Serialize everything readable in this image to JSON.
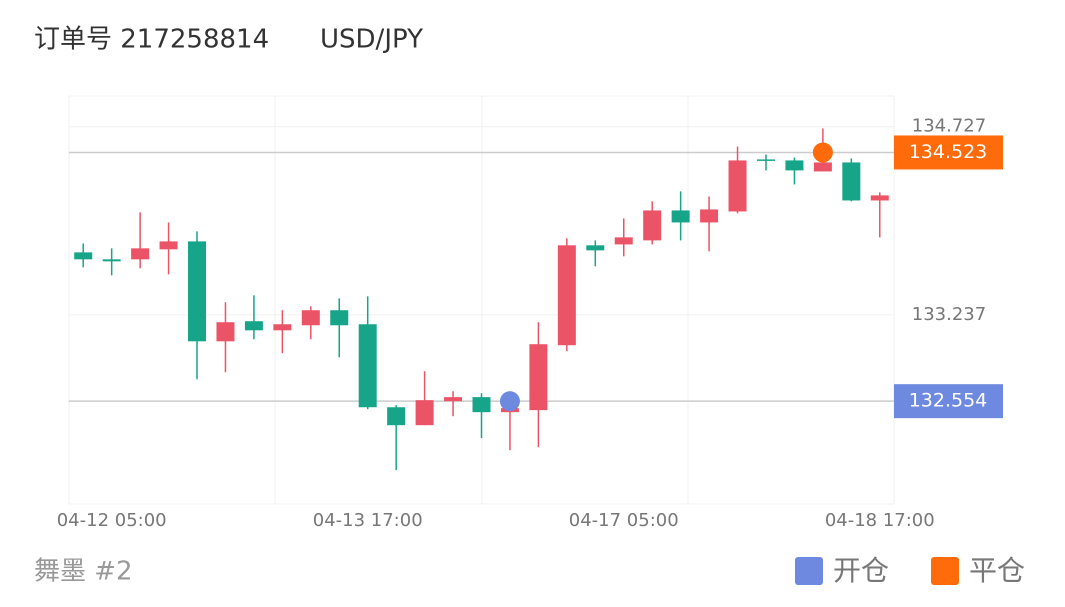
{
  "chart_data": {
    "type": "candlestick",
    "title": "订单号 217258814",
    "symbol": "USD/JPY",
    "footer": "舞墨 #2",
    "categories": [
      null,
      "04-12 05:00",
      null,
      null,
      null,
      null,
      null,
      null,
      null,
      null,
      "04-13 17:00",
      null,
      null,
      null,
      null,
      null,
      null,
      null,
      null,
      "04-17 05:00",
      null,
      null,
      null,
      null,
      null,
      null,
      null,
      null,
      "04-18 17:00"
    ],
    "open": [
      133.732,
      133.677,
      133.677,
      133.756,
      133.819,
      133.028,
      133.187,
      133.115,
      133.155,
      133.274,
      133.163,
      132.506,
      132.364,
      132.554,
      132.586,
      132.467,
      132.483,
      132.997,
      133.788,
      133.795,
      133.827,
      134.064,
      133.969,
      134.056,
      134.468,
      134.46,
      134.373,
      134.444,
      134.143
    ],
    "high": [
      133.803,
      133.764,
      134.049,
      133.969,
      133.898,
      133.337,
      133.392,
      133.274,
      133.305,
      133.368,
      133.384,
      132.522,
      132.791,
      132.633,
      132.617,
      132.554,
      133.179,
      133.843,
      133.827,
      134.001,
      134.136,
      134.215,
      134.175,
      134.57,
      134.507,
      134.483,
      134.713,
      134.476,
      134.207
    ],
    "low": [
      133.614,
      133.55,
      133.606,
      133.558,
      132.728,
      132.783,
      133.044,
      132.934,
      133.044,
      132.902,
      132.491,
      132.008,
      132.364,
      132.435,
      132.262,
      132.166,
      132.19,
      132.949,
      133.622,
      133.701,
      133.795,
      133.827,
      133.74,
      134.041,
      134.381,
      134.27,
      134.373,
      134.136,
      133.851
    ],
    "close": [
      133.677,
      133.661,
      133.764,
      133.819,
      133.028,
      133.179,
      133.115,
      133.163,
      133.274,
      133.155,
      132.506,
      132.364,
      132.562,
      132.586,
      132.467,
      132.499,
      133.005,
      133.788,
      133.748,
      133.851,
      134.064,
      133.969,
      134.072,
      134.46,
      134.46,
      134.381,
      134.444,
      134.143,
      134.183
    ],
    "up_color": "#eb5466",
    "down_color": "#17a589",
    "ylim": [
      131.74,
      134.97
    ],
    "yticks": [
      133.237,
      134.727
    ],
    "grid": true,
    "markers": [
      {
        "name": "开仓",
        "index": 15,
        "value": 132.554,
        "color": "#6e8ae0"
      },
      {
        "name": "平仓",
        "index": 26,
        "value": 134.523,
        "color": "#ff6a0a"
      }
    ],
    "legend": "bottom-right"
  }
}
